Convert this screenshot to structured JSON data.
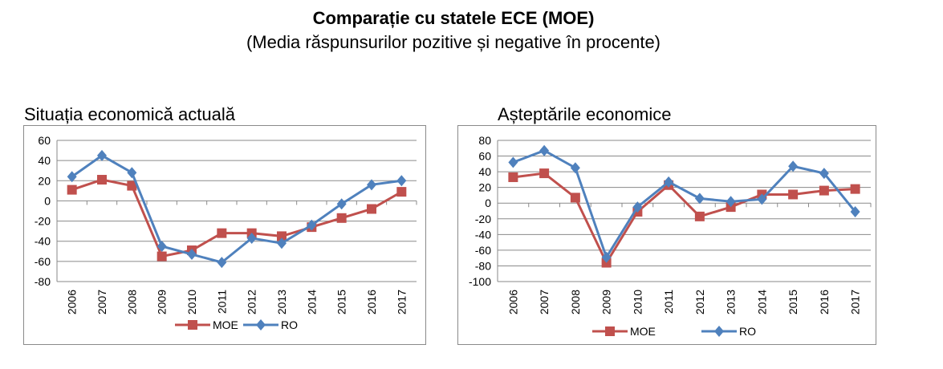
{
  "header": {
    "title": "Comparație cu statele ECE (MOE)",
    "subtitle": "(Media răspunsurilor pozitive și negative în procente)"
  },
  "colors": {
    "moe": "#c0504d",
    "ro": "#4f81bd",
    "grid": "#8a8a8a"
  },
  "chart_data": [
    {
      "type": "line",
      "title": "Situația economică actuală",
      "categories": [
        "2006",
        "2007",
        "2008",
        "2009",
        "2010",
        "2011",
        "2012",
        "2013",
        "2014",
        "2015",
        "2016",
        "2017"
      ],
      "ylim": [
        -80,
        60
      ],
      "yticks": [
        "60",
        "40",
        "20",
        "0",
        "-20",
        "-40",
        "-60",
        "-80"
      ],
      "grid": true,
      "legend": "bottom",
      "series": [
        {
          "name": "MOE",
          "marker": "square",
          "values": [
            11,
            21,
            15,
            -55,
            -49,
            -32,
            -32,
            -35,
            -26,
            -17,
            -8,
            9
          ]
        },
        {
          "name": "RO",
          "marker": "diamond",
          "values": [
            24,
            45,
            28,
            -45,
            -53,
            -61,
            -37,
            -42,
            -24,
            -3,
            16,
            20
          ]
        }
      ]
    },
    {
      "type": "line",
      "title": "Așteptările economice",
      "categories": [
        "2006",
        "2007",
        "2008",
        "2009",
        "2010",
        "2011",
        "2012",
        "2013",
        "2014",
        "2015",
        "2016",
        "2017"
      ],
      "ylim": [
        -100,
        80
      ],
      "yticks": [
        "80",
        "60",
        "40",
        "20",
        "0",
        "-20",
        "-40",
        "-60",
        "-80",
        "-100"
      ],
      "grid": true,
      "legend": "bottom",
      "series": [
        {
          "name": "MOE",
          "marker": "square",
          "values": [
            33,
            38,
            7,
            -76,
            -11,
            23,
            -17,
            -5,
            11,
            11,
            16,
            18
          ]
        },
        {
          "name": "RO",
          "marker": "diamond",
          "values": [
            52,
            67,
            45,
            -69,
            -5,
            27,
            6,
            2,
            5,
            47,
            38,
            -11
          ]
        }
      ]
    }
  ]
}
